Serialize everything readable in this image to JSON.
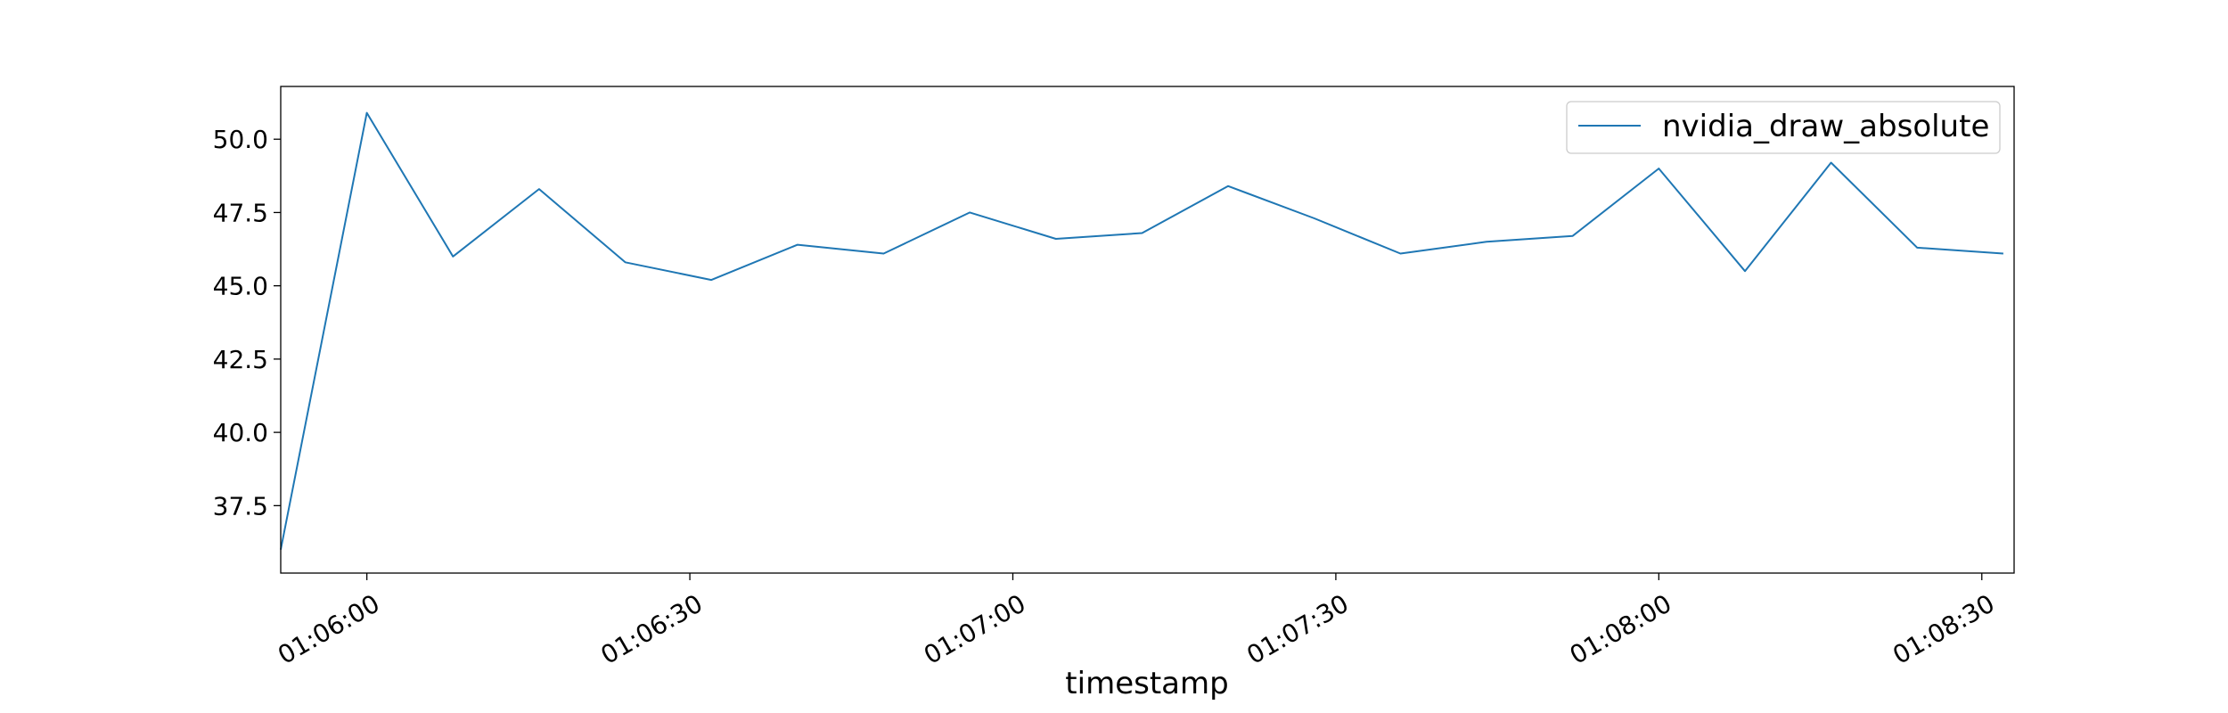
{
  "chart_data": {
    "type": "line",
    "title": "",
    "xlabel": "timestamp",
    "ylabel": "",
    "x": [
      "01:05:52",
      "01:06:00",
      "01:06:08",
      "01:06:16",
      "01:06:24",
      "01:06:32",
      "01:06:40",
      "01:06:48",
      "01:06:56",
      "01:07:04",
      "01:07:12",
      "01:07:20",
      "01:07:28",
      "01:07:36",
      "01:07:44",
      "01:07:52",
      "01:08:00",
      "01:08:08",
      "01:08:16",
      "01:08:24",
      "01:08:32"
    ],
    "series": [
      {
        "name": "nvidia_draw_absolute",
        "color": "#1f77b4",
        "values": [
          36.0,
          50.9,
          46.0,
          48.3,
          45.8,
          45.2,
          46.4,
          46.1,
          47.5,
          46.6,
          46.8,
          48.4,
          47.3,
          46.1,
          46.5,
          46.7,
          49.0,
          45.5,
          49.2,
          46.3,
          46.1
        ]
      }
    ],
    "xlim": [
      "01:05:52",
      "01:08:33"
    ],
    "ylim": [
      35.2,
      51.8
    ],
    "x_ticks": [
      "01:06:00",
      "01:06:30",
      "01:07:00",
      "01:07:30",
      "01:08:00",
      "01:08:30"
    ],
    "y_ticks": [
      37.5,
      40.0,
      42.5,
      45.0,
      47.5,
      50.0
    ],
    "y_tick_labels": [
      "37.5",
      "40.0",
      "42.5",
      "45.0",
      "47.5",
      "50.0"
    ],
    "grid": false,
    "legend_position": "top-right"
  }
}
